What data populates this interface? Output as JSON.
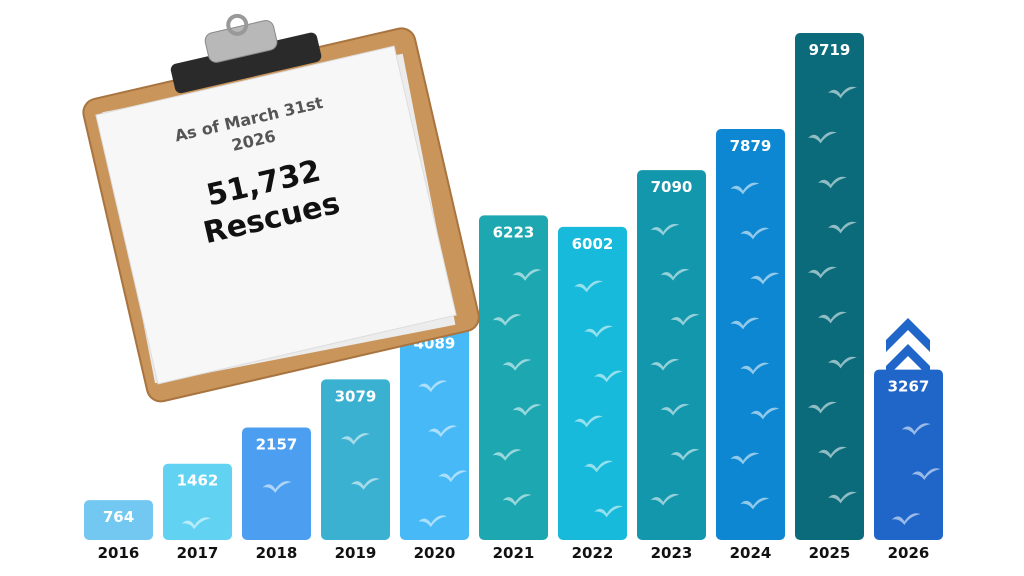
{
  "chart_data": {
    "type": "bar",
    "categories": [
      "2016",
      "2017",
      "2018",
      "2019",
      "2020",
      "2021",
      "2022",
      "2023",
      "2024",
      "2025",
      "2026"
    ],
    "values": [
      764,
      1462,
      2157,
      3079,
      4089,
      6223,
      6002,
      7090,
      7879,
      9719,
      3267
    ],
    "colors": [
      "#72c8f0",
      "#62d2f3",
      "#4c9ff0",
      "#3bb1d1",
      "#46b9f6",
      "#1ca7b1",
      "#17bada",
      "#1397ad",
      "#0d87d1",
      "#0b6b7b",
      "#2066c9"
    ],
    "annotation": {
      "date_lines": [
        "As of March 31st",
        "2026"
      ],
      "total": "51,732",
      "label": "Rescues"
    }
  }
}
